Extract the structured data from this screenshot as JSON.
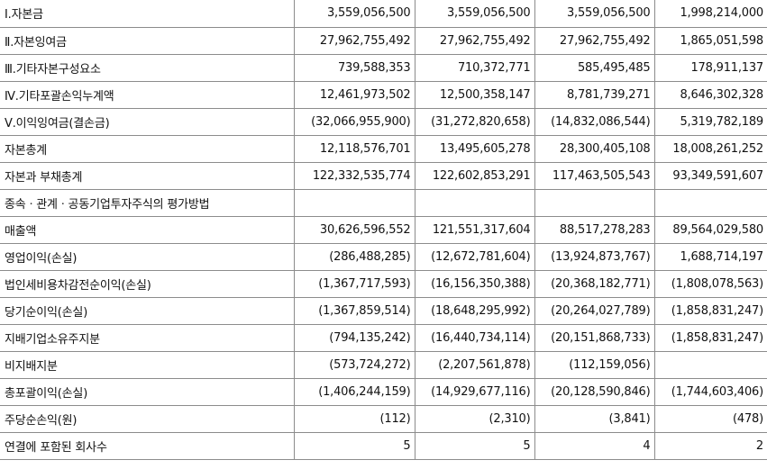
{
  "rows": [
    {
      "label": "Ⅰ.자본금",
      "values": [
        "3,559,056,500",
        "3,559,056,500",
        "3,559,056,500",
        "1,998,214,000"
      ]
    },
    {
      "label": "Ⅱ.자본잉여금",
      "values": [
        "27,962,755,492",
        "27,962,755,492",
        "27,962,755,492",
        "1,865,051,598"
      ]
    },
    {
      "label": "Ⅲ.기타자본구성요소",
      "values": [
        "739,588,353",
        "710,372,771",
        "585,495,485",
        "178,911,137"
      ]
    },
    {
      "label": "Ⅳ.기타포괄손익누계액",
      "values": [
        "12,461,973,502",
        "12,500,358,147",
        "8,781,739,271",
        "8,646,302,328"
      ]
    },
    {
      "label": "Ⅴ.이익잉여금(결손금)",
      "values": [
        "(32,066,955,900)",
        "(31,272,820,658)",
        "(14,832,086,544)",
        "5,319,782,189"
      ]
    },
    {
      "label": "자본총계",
      "values": [
        "12,118,576,701",
        "13,495,605,278",
        "28,300,405,108",
        "18,008,261,252"
      ]
    },
    {
      "label": "자본과 부채총계",
      "values": [
        "122,332,535,774",
        "122,602,853,291",
        "117,463,505,543",
        "93,349,591,607"
      ]
    },
    {
      "label": "종속ㆍ관계ㆍ공동기업투자주식의 평가방법",
      "values": [
        "",
        "",
        "",
        ""
      ]
    },
    {
      "label": "매출액",
      "values": [
        "30,626,596,552",
        "121,551,317,604",
        "88,517,278,283",
        "89,564,029,580"
      ]
    },
    {
      "label": "영업이익(손실)",
      "values": [
        "(286,488,285)",
        "(12,672,781,604)",
        "(13,924,873,767)",
        "1,688,714,197"
      ]
    },
    {
      "label": "법인세비용차감전순이익(손실)",
      "values": [
        "(1,367,717,593)",
        "(16,156,350,388)",
        "(20,368,182,771)",
        "(1,808,078,563)"
      ]
    },
    {
      "label": "당기순이익(손실)",
      "values": [
        "(1,367,859,514)",
        "(18,648,295,992)",
        "(20,264,027,789)",
        "(1,858,831,247)"
      ]
    },
    {
      "label": "지배기업소유주지분",
      "values": [
        "(794,135,242)",
        "(16,440,734,114)",
        "(20,151,868,733)",
        "(1,858,831,247)"
      ]
    },
    {
      "label": "비지배지분",
      "values": [
        "(573,724,272)",
        "(2,207,561,878)",
        "(112,159,056)",
        ""
      ]
    },
    {
      "label": "총포괄이익(손실)",
      "values": [
        "(1,406,244,159)",
        "(14,929,677,116)",
        "(20,128,590,846)",
        "(1,744,603,406)"
      ]
    },
    {
      "label": "주당순손익(원)",
      "values": [
        "(112)",
        "(2,310)",
        "(3,841)",
        "(478)"
      ]
    },
    {
      "label": "연결에 포함된 회사수",
      "values": [
        "5",
        "5",
        "4",
        "2"
      ]
    }
  ]
}
